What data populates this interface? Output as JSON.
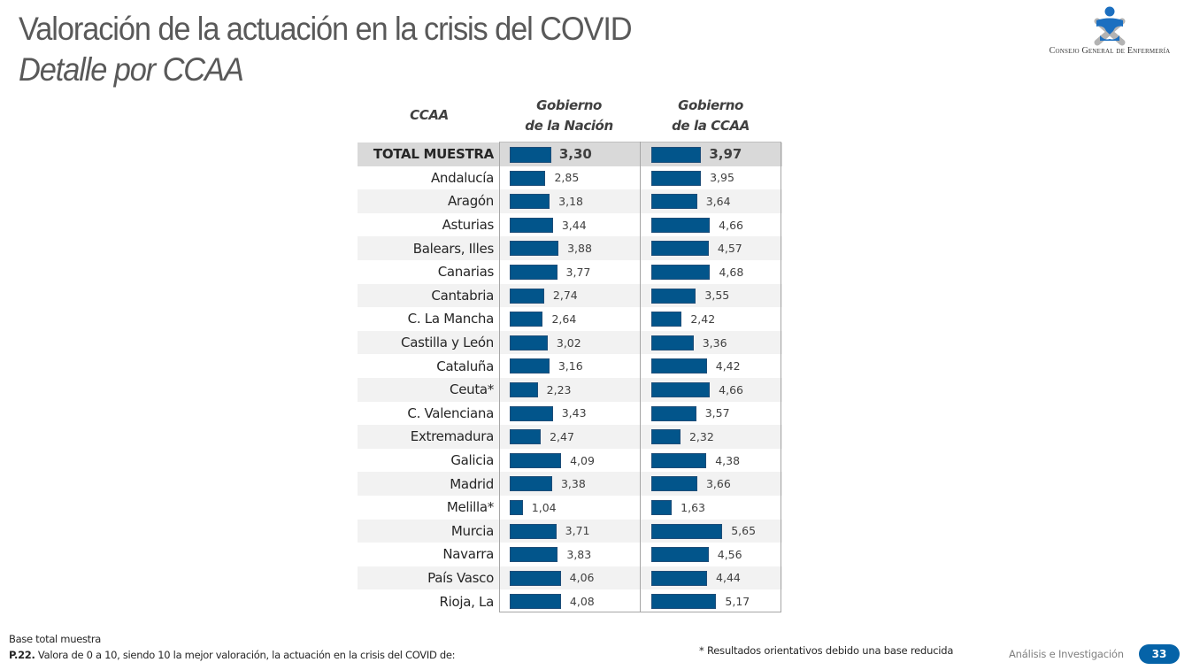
{
  "header": {
    "title": "Valoración de la actuación en la crisis del COVID",
    "subtitle": "Detalle por CCAA",
    "logo_text": "Consejo General de Enfermería"
  },
  "colors": {
    "bar": "#02558b",
    "total_row": "#d9d9d9",
    "shaded_row": "#f2f2f2",
    "page_badge": "#0563a8"
  },
  "chart_data": {
    "type": "bar",
    "orientation": "horizontal",
    "title": "Valoración de la actuación en la crisis del COVID",
    "subtitle": "Detalle por CCAA",
    "row_header": "CCAA",
    "scale": [
      0,
      10
    ],
    "categories": [
      "TOTAL MUESTRA",
      "Andalucía",
      "Aragón",
      "Asturias",
      "Balears, Illes",
      "Canarias",
      "Cantabria",
      "C. La Mancha",
      "Castilla y León",
      "Cataluña",
      "Ceuta*",
      "C. Valenciana",
      "Extremadura",
      "Galicia",
      "Madrid",
      "Melilla*",
      "Murcia",
      "Navarra",
      "País Vasco",
      "Rioja, La"
    ],
    "series": [
      {
        "name": "Gobierno de la Nación",
        "name_lines": [
          "Gobierno",
          "de la Nación"
        ],
        "values": [
          3.3,
          2.85,
          3.18,
          3.44,
          3.88,
          3.77,
          2.74,
          2.64,
          3.02,
          3.16,
          2.23,
          3.43,
          2.47,
          4.09,
          3.38,
          1.04,
          3.71,
          3.83,
          4.06,
          4.08
        ],
        "labels": [
          "3,30",
          "2,85",
          "3,18",
          "3,44",
          "3,88",
          "3,77",
          "2,74",
          "2,64",
          "3,02",
          "3,16",
          "2,23",
          "3,43",
          "2,47",
          "4,09",
          "3,38",
          "1,04",
          "3,71",
          "3,83",
          "4,06",
          "4,08"
        ]
      },
      {
        "name": "Gobierno de la CCAA",
        "name_lines": [
          "Gobierno",
          "de la CCAA"
        ],
        "values": [
          3.97,
          3.95,
          3.64,
          4.66,
          4.57,
          4.68,
          3.55,
          2.42,
          3.36,
          4.42,
          4.66,
          3.57,
          2.32,
          4.38,
          3.66,
          1.63,
          5.65,
          4.56,
          4.44,
          5.17
        ],
        "labels": [
          "3,97",
          "3,95",
          "3,64",
          "4,66",
          "4,57",
          "4,68",
          "3,55",
          "2,42",
          "3,36",
          "4,42",
          "4,66",
          "3,57",
          "2,32",
          "4,38",
          "3,66",
          "1,63",
          "5,65",
          "4,56",
          "4,44",
          "5,17"
        ]
      }
    ]
  },
  "footer": {
    "base": "Base total muestra",
    "question_code": "P.22.",
    "question": " Valora de 0 a 10, siendo 10 la mejor valoración, la actuación en la crisis del COVID de:",
    "note": "* Resultados orientativos debido una base reducida",
    "brand": "Análisis e Investigación",
    "page_number": "33"
  }
}
